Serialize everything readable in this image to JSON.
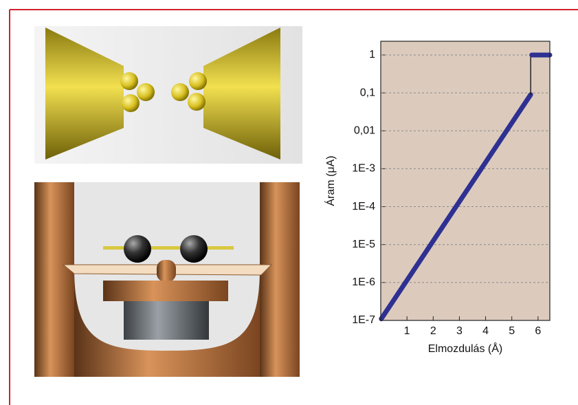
{
  "chart_data": {
    "type": "line",
    "x_label": "Elmozdulás (Å)",
    "y_label": "Áram (μA)",
    "xlim": [
      0,
      6.45
    ],
    "ylim": [
      1e-07,
      2.3
    ],
    "log_y": true,
    "grid": true,
    "background": "#dccbbd",
    "xticks": [
      1,
      2,
      3,
      4,
      5,
      6
    ],
    "yticks": [
      1,
      {
        "value": 0.1,
        "label": "0,1"
      },
      {
        "value": 0.01,
        "label": "0,01"
      },
      {
        "value": 0.001,
        "label": "1E-3"
      },
      {
        "value": 0.0001,
        "label": "1E-4"
      },
      {
        "value": 1e-05,
        "label": "1E-5"
      },
      {
        "value": 1e-06,
        "label": "1E-6"
      },
      {
        "value": 1e-07,
        "label": "1E-7"
      }
    ],
    "series": [
      {
        "color": "#2e3192",
        "width": 7,
        "x": [
          0.02,
          5.72
        ],
        "values": [
          1.1e-07,
          0.09
        ]
      },
      {
        "color": "#222222",
        "width": 1.5,
        "x": [
          5.72,
          5.72
        ],
        "values": [
          0.09,
          1
        ]
      },
      {
        "color": "#2e3192",
        "width": 7,
        "x": [
          5.76,
          6.45
        ],
        "values": [
          1,
          1
        ]
      }
    ]
  }
}
